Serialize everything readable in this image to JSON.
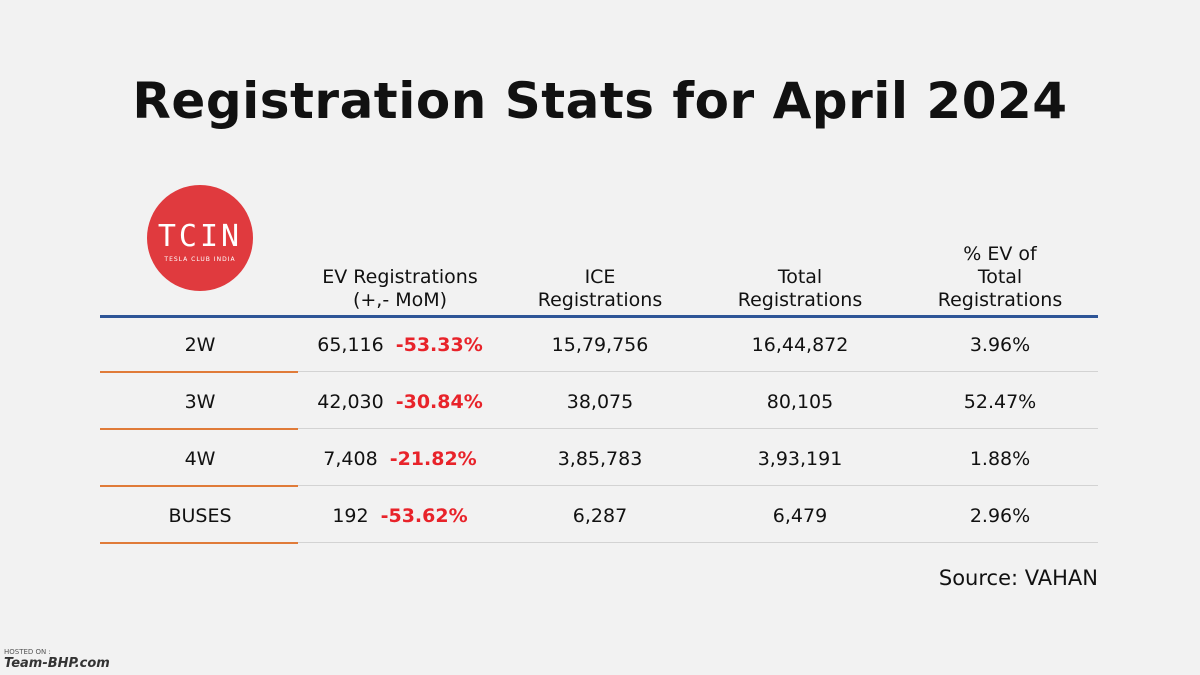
{
  "title": "Registration Stats for April 2024",
  "logo": {
    "main": "TCIN",
    "sub": "TESLA CLUB INDIA"
  },
  "table": {
    "headers": [
      [
        "EV Registrations",
        "(+,- MoM)"
      ],
      [
        "ICE",
        "Registrations"
      ],
      [
        "Total",
        "Registrations"
      ],
      [
        "% EV of",
        "Total",
        "Registrations"
      ]
    ],
    "rows": [
      [
        "2W",
        "65,116",
        "-53.33%",
        "15,79,756",
        "16,44,872",
        "3.96%"
      ],
      [
        "3W",
        "42,030",
        "-30.84%",
        "38,075",
        "80,105",
        "52.47%"
      ],
      [
        "4W",
        "7,408",
        "-21.82%",
        "3,85,783",
        "3,93,191",
        "1.88%"
      ],
      [
        "BUSES",
        "192",
        "-53.62%",
        "6,287",
        "6,479",
        "2.96%"
      ]
    ]
  },
  "source": "Source: VAHAN",
  "watermark": {
    "hosted": "HOSTED ON :",
    "site": "Team-BHP.com"
  }
}
